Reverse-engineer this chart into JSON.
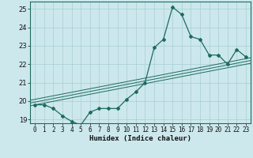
{
  "xlabel": "Humidex (Indice chaleur)",
  "xlim_min": -0.5,
  "xlim_max": 23.5,
  "ylim_min": 18.8,
  "ylim_max": 25.4,
  "yticks": [
    19,
    20,
    21,
    22,
    23,
    24,
    25
  ],
  "xticks": [
    0,
    1,
    2,
    3,
    4,
    5,
    6,
    7,
    8,
    9,
    10,
    11,
    12,
    13,
    14,
    15,
    16,
    17,
    18,
    19,
    20,
    21,
    22,
    23
  ],
  "bg_color": "#cce8ec",
  "line_color": "#1e6b5e",
  "grid_color": "#a8cdd4",
  "main_x": [
    0,
    1,
    2,
    3,
    4,
    5,
    6,
    7,
    8,
    9,
    10,
    11,
    12,
    13,
    14,
    15,
    16,
    17,
    18,
    19,
    20,
    21,
    22,
    23
  ],
  "main_y": [
    19.8,
    19.8,
    19.6,
    19.2,
    18.9,
    18.7,
    19.4,
    19.6,
    19.6,
    19.6,
    20.1,
    20.5,
    21.0,
    22.9,
    23.35,
    25.1,
    24.7,
    23.5,
    23.35,
    22.5,
    22.5,
    22.0,
    22.8,
    22.4
  ],
  "reg_lines": [
    [
      19.75,
      22.05
    ],
    [
      19.9,
      22.2
    ],
    [
      20.05,
      22.35
    ]
  ],
  "tick_fontsize": 5.5,
  "label_fontsize": 6.5,
  "spine_color": "#1e6b5e"
}
